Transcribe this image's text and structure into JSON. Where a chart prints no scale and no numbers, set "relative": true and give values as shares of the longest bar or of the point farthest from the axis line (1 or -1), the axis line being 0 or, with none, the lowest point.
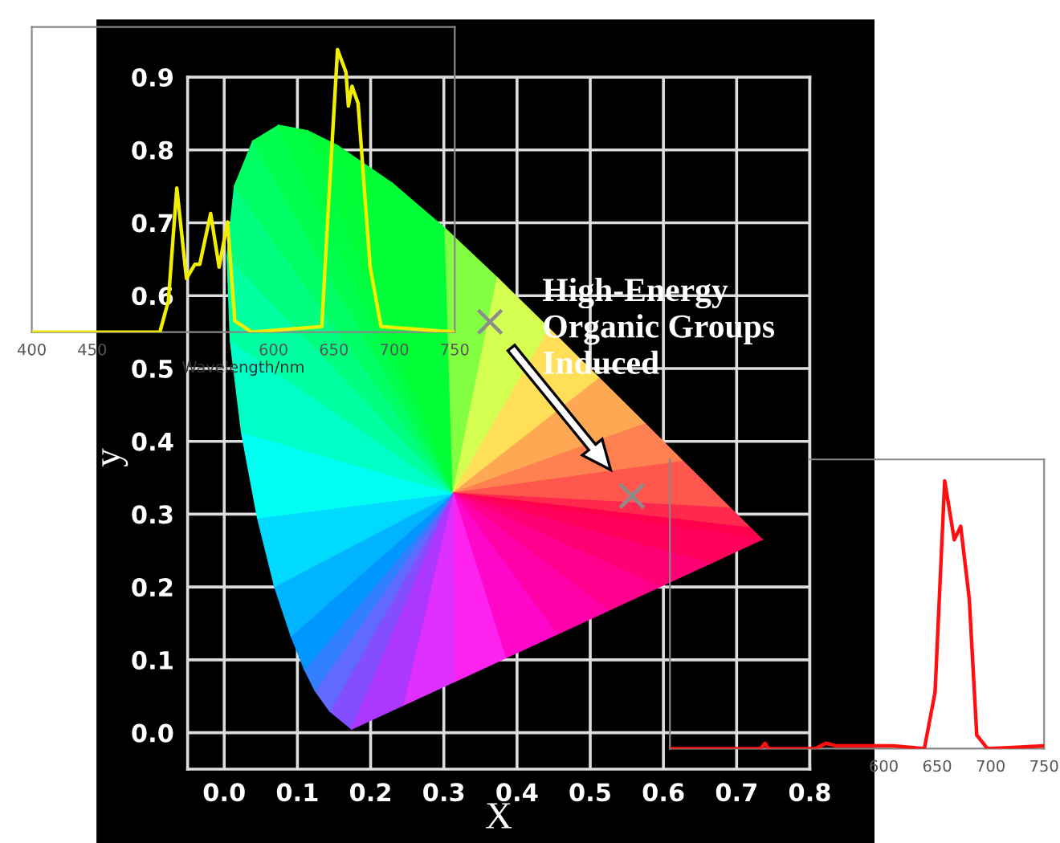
{
  "chart_data": [
    {
      "type": "scatter",
      "xlabel": "X",
      "ylabel": "y",
      "x": [
        0.363,
        0.557
      ],
      "series": [
        {
          "color": "#8c8c8c",
          "values": [
            0.564,
            0.325
          ]
        }
      ],
      "xlim": [
        -0.05,
        0.8
      ],
      "ylim": [
        -0.05,
        0.9
      ],
      "xticks": [
        {
          "value": 0,
          "label": "0.0"
        },
        {
          "value": 0.1,
          "label": "0.1"
        },
        {
          "value": 0.2,
          "label": "0.2"
        },
        {
          "value": 0.3,
          "label": "0.3"
        },
        {
          "value": 0.4,
          "label": "0.4"
        },
        {
          "value": 0.5,
          "label": "0.5"
        },
        {
          "value": 0.6,
          "label": "0.6"
        },
        {
          "value": 0.7,
          "label": "0.7"
        },
        {
          "value": 0.8,
          "label": "0.8"
        }
      ],
      "yticks": [
        {
          "value": 0,
          "label": "0.0"
        },
        {
          "value": 0.1,
          "label": "0.1"
        },
        {
          "value": 0.2,
          "label": "0.2"
        },
        {
          "value": 0.3,
          "label": "0.3"
        },
        {
          "value": 0.4,
          "label": "0.4"
        },
        {
          "value": 0.5,
          "label": "0.5"
        },
        {
          "value": 0.6,
          "label": "0.6"
        },
        {
          "value": 0.7,
          "label": "0.7"
        },
        {
          "value": 0.8,
          "label": "0.8"
        },
        {
          "value": 0.9,
          "label": "0.9"
        }
      ],
      "grid": true,
      "marker": "cross",
      "annotations": [
        "High-Energy\nOrganic Groups\nInduced"
      ]
    },
    {
      "type": "line",
      "relative": true,
      "xlabel": "Wavelength/nm",
      "x": [
        400,
        461,
        506,
        513,
        520,
        528,
        535,
        539,
        548,
        555,
        562,
        568,
        582,
        640,
        645,
        653,
        660,
        662,
        665,
        670,
        680,
        689,
        750
      ],
      "series": [
        {
          "color": "#f2ee00",
          "values": [
            0,
            0,
            0,
            0.11,
            0.51,
            0.19,
            0.24,
            0.24,
            0.42,
            0.23,
            0.39,
            0.04,
            0,
            0.02,
            0.41,
            1.0,
            0.92,
            0.8,
            0.87,
            0.81,
            0.23,
            0.02,
            0
          ]
        }
      ],
      "xlim": [
        400,
        750
      ],
      "xticks": [
        400,
        450,
        600,
        650,
        700,
        750
      ],
      "tick_labels": "x"
    },
    {
      "type": "line",
      "relative": true,
      "x": [
        400,
        485,
        489,
        492,
        536,
        546,
        556,
        609,
        638,
        648,
        657,
        666,
        672,
        680,
        687,
        697,
        750
      ],
      "series": [
        {
          "color": "#ff1010",
          "values": [
            0,
            0,
            0.02,
            0,
            0,
            0.02,
            0.01,
            0.01,
            0,
            0.21,
            1.0,
            0.78,
            0.83,
            0.56,
            0.05,
            0,
            0.01
          ]
        }
      ],
      "xlim": [
        400,
        750
      ],
      "xticks": [
        600,
        650,
        700,
        750
      ],
      "tick_labels": "x"
    }
  ]
}
